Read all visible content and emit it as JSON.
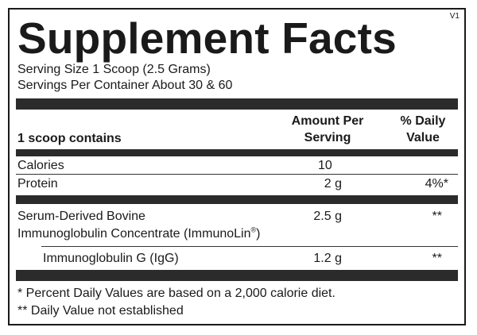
{
  "title": "Supplement Facts",
  "version": "V1",
  "serving_size": "Serving Size 1 Scoop (2.5 Grams)",
  "servings_per_container": "Servings Per Container About 30 & 60",
  "header": {
    "contains": "1 scoop contains",
    "amount_line1": "Amount Per",
    "amount_line2": "Serving",
    "dv_line1": "% Daily",
    "dv_line2": "Value"
  },
  "rows": [
    {
      "name": "Calories",
      "amount": "10",
      "dv": ""
    },
    {
      "name": "Protein",
      "amount": "2 g",
      "dv": "4%*"
    },
    {
      "name_line1": "Serum-Derived Bovine",
      "name_line2": "Immunoglobulin Concentrate (ImmunoLin",
      "registered": "®",
      "name_line2_end": ")",
      "amount": "2.5 g",
      "dv": "**"
    },
    {
      "name": "Immunoglobulin G (IgG)",
      "amount": "1.2 g",
      "dv": "**"
    }
  ],
  "footnotes": [
    "* Percent Daily Values are based on a 2,000 calorie diet.",
    "** Daily Value not established"
  ],
  "colors": {
    "bar": "#2b2b2b",
    "text": "#1a1a1a"
  }
}
